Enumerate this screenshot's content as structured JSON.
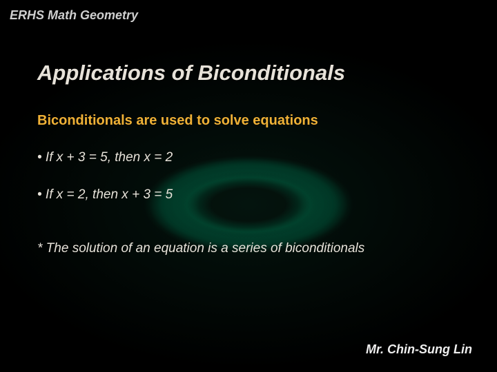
{
  "colors": {
    "header": "#cfcfcf",
    "title": "#e7e2d9",
    "subtitle": "#f0b136",
    "body": "#e7e2d9",
    "footer": "#eeeeee"
  },
  "header": "ERHS Math Geometry",
  "title": "Applications of Biconditionals",
  "subtitle": "Biconditionals are used to solve equations",
  "bullets": [
    "• If x + 3 = 5, then x = 2",
    "• If x = 2, then x + 3 = 5"
  ],
  "note": "* The solution of an equation is a series of biconditionals",
  "footer": "Mr. Chin-Sung Lin"
}
